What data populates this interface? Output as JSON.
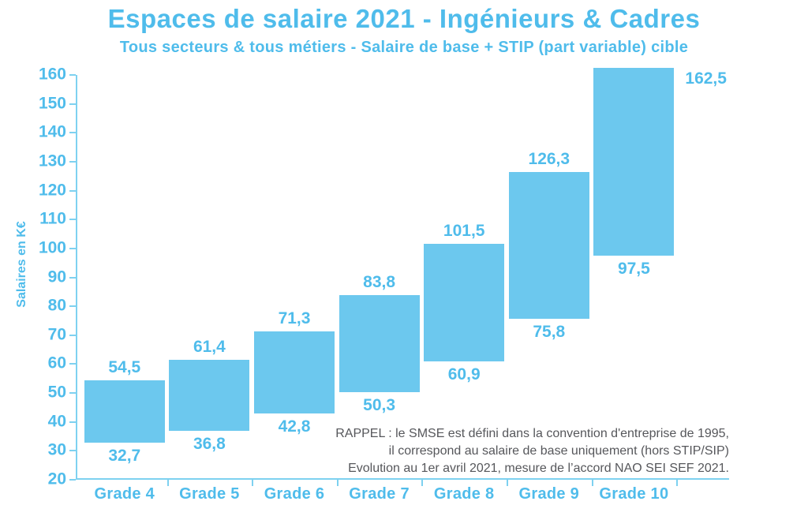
{
  "page": {
    "title": "Espaces de salaire 2021 - Ingénieurs & Cadres",
    "subtitle": "Tous secteurs & tous métiers - Salaire de base + STIP (part variable) cible"
  },
  "chart_data": {
    "type": "bar",
    "variant": "floating-range-bars",
    "title": "Espaces de salaire 2021 - Ingénieurs & Cadres",
    "subtitle": "Tous secteurs & tous métiers - Salaire de base + STIP (part variable) cible",
    "xlabel": "",
    "ylabel": "Salaires en K€",
    "ylim": [
      20,
      160
    ],
    "ytick_step": 10,
    "grid": false,
    "legend": false,
    "categories": [
      "Grade 4",
      "Grade 5",
      "Grade 6",
      "Grade 7",
      "Grade 8",
      "Grade 9",
      "Grade 10"
    ],
    "series": [
      {
        "category": "Grade 4",
        "min": 32.7,
        "max": 54.5,
        "min_label": "32,7",
        "max_label": "54,5"
      },
      {
        "category": "Grade 5",
        "min": 36.8,
        "max": 61.4,
        "min_label": "36,8",
        "max_label": "61,4"
      },
      {
        "category": "Grade 6",
        "min": 42.8,
        "max": 71.3,
        "min_label": "42,8",
        "max_label": "71,3"
      },
      {
        "category": "Grade 7",
        "min": 50.3,
        "max": 83.8,
        "min_label": "50,3",
        "max_label": "83,8"
      },
      {
        "category": "Grade 8",
        "min": 60.9,
        "max": 101.5,
        "min_label": "60,9",
        "max_label": "101,5"
      },
      {
        "category": "Grade 9",
        "min": 75.8,
        "max": 126.3,
        "min_label": "75,8",
        "max_label": "126,3"
      },
      {
        "category": "Grade 10",
        "min": 97.5,
        "max": 162.5,
        "min_label": "97,5",
        "max_label": "162,5"
      }
    ],
    "note_lines": [
      "RAPPEL : le SMSE est défini dans la convention d'entreprise de 1995,",
      "il correspond au salaire de base uniquement (hors STIP/SIP)",
      "Evolution au 1er avril 2021, mesure de l’accord NAO SEI SEF 2021."
    ],
    "colors": {
      "bar": "#6cc8ee",
      "text_blue": "#4fbceb",
      "axis": "#7ed1f0",
      "note_gray": "#56575b"
    }
  }
}
